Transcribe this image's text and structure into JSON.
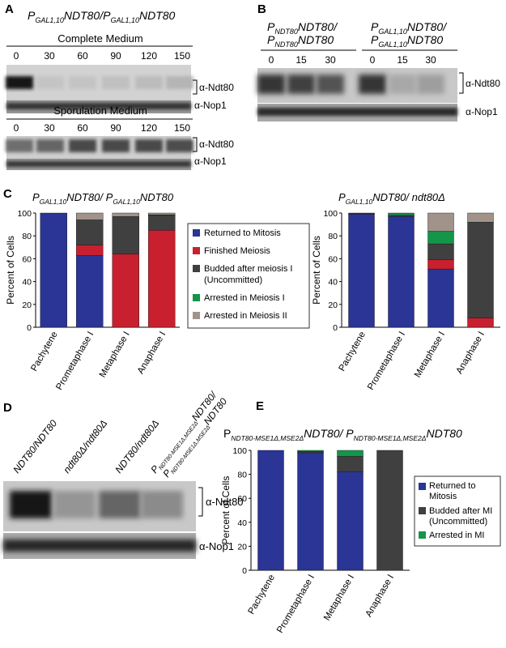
{
  "panels": {
    "A": {
      "letter": "A",
      "genotype": {
        "p1": "P",
        "s1": "GAL1,10",
        "m": "NDT80/",
        "p2": "P",
        "s2": "GAL1,10",
        "e": "NDT80"
      },
      "complete": {
        "title": "Complete Medium",
        "lanes": [
          "0",
          "30",
          "60",
          "90",
          "120",
          "150"
        ]
      },
      "sporulation": {
        "title": "Sporulation Medium",
        "lanes": [
          "0",
          "30",
          "60",
          "90",
          "120",
          "150"
        ]
      },
      "labels": {
        "ndt80": "α-Ndt80",
        "nop1": "α-Nop1"
      },
      "band_levels_complete": [
        1.0,
        0.1,
        0.1,
        0.12,
        0.14,
        0.18
      ],
      "band_levels_sporulation": [
        0.55,
        0.6,
        0.75,
        0.75,
        0.75,
        0.72
      ]
    },
    "B": {
      "letter": "B",
      "left_genotype": {
        "p1": "P",
        "s1": "NDT80",
        "m": "NDT80/",
        "p2": "P",
        "s2": "NDT80",
        "e": "NDT80"
      },
      "right_genotype": {
        "p1": "P",
        "s1": "GAL1,10",
        "m": "NDT80/",
        "p2": "P",
        "s2": "GAL1,10",
        "e": "NDT80"
      },
      "left_lanes": [
        "0",
        "15",
        "30"
      ],
      "right_lanes": [
        "0",
        "15",
        "30"
      ],
      "labels": {
        "ndt80": "α-Ndt80",
        "nop1": "α-Nop1"
      },
      "band_levels": [
        0.85,
        0.8,
        0.7,
        0.85,
        0.25,
        0.3
      ]
    },
    "C": {
      "letter": "C",
      "left_title": {
        "p": "P",
        "s": "GAL1,10",
        "m": "NDT80/ ",
        "p2": "P",
        "s2": "GAL1,10",
        "e": "NDT80"
      },
      "right_title": {
        "p": "P",
        "s": "GAL1,10",
        "e": "NDT80/ ndt80Δ"
      },
      "legend": [
        "Returned to Mitosis",
        "Finished Meiosis",
        "Budded after meiosis I",
        "(Uncommitted)",
        "Arrested in Meiosis I",
        "Arrested in Meiosis II"
      ]
    },
    "D": {
      "letter": "D",
      "lanes": [
        "NDT80/NDT80",
        "ndt80Δ/ndt80Δ",
        "NDT80/ndt80Δ"
      ],
      "lane4": {
        "p1": "P",
        "s1": "NDT80-MSE1Δ,MSE2Δ",
        "e1": "NDT80/",
        "p2": "P",
        "s2": "NDT80-MSE1Δ,MSE2Δ",
        "e2": "NDT80"
      },
      "labels": {
        "ndt80": "α-Ndt80",
        "nop1": "α-Nop1"
      },
      "band_levels": [
        1.0,
        0.35,
        0.6,
        0.4
      ]
    },
    "E": {
      "letter": "E",
      "title": {
        "p1": "P",
        "s1": "NDT80-MSE1Δ,MSE2Δ",
        "m": "NDT80/ P",
        "s2": "NDT80-MSE1Δ,MSE2Δ",
        "e": "NDT80"
      },
      "legend": [
        "Returned to",
        "Mitosis",
        "Budded after MI",
        "(Uncommitted)",
        "Arrested in MI"
      ]
    }
  },
  "colors": {
    "mitosis": "#2a3596",
    "finished_meiosis": "#c8202f",
    "budded": "#404040",
    "arrest_mi": "#14954a",
    "arrest_mii": "#a1938a"
  },
  "chart_data": [
    {
      "type": "bar",
      "stacked": true,
      "ylabel": "Percent of Cells",
      "ylim": [
        0,
        100
      ],
      "yticks": [
        "0",
        "20",
        "40",
        "60",
        "80",
        "100"
      ],
      "categories": [
        "Pachytene",
        "Prometaphase I",
        "Metaphase I",
        "Anaphase I"
      ],
      "series": [
        {
          "name": "Returned to Mitosis",
          "color": "#2a3596",
          "values": [
            100,
            63,
            0,
            0
          ]
        },
        {
          "name": "Finished Meiosis",
          "color": "#c8202f",
          "values": [
            0,
            9,
            64,
            85
          ]
        },
        {
          "name": "Budded after meiosis I (Uncommitted)",
          "color": "#404040",
          "values": [
            0,
            22,
            33,
            13
          ]
        },
        {
          "name": "Arrested in Meiosis I",
          "color": "#14954a",
          "values": [
            0,
            0,
            0,
            0.5
          ]
        },
        {
          "name": "Arrested in Meiosis II",
          "color": "#a1938a",
          "values": [
            0,
            6,
            3,
            1.5
          ]
        }
      ]
    },
    {
      "type": "bar",
      "stacked": true,
      "ylabel": "Percent of Cells",
      "ylim": [
        0,
        100
      ],
      "yticks": [
        "0",
        "20",
        "40",
        "60",
        "80",
        "100"
      ],
      "categories": [
        "Pachytene",
        "Prometaphase I",
        "Metaphase I",
        "Anaphase I"
      ],
      "series": [
        {
          "name": "Returned to Mitosis",
          "color": "#2a3596",
          "values": [
            99,
            97,
            51,
            0
          ]
        },
        {
          "name": "Finished Meiosis",
          "color": "#c8202f",
          "values": [
            0,
            0,
            8,
            8
          ]
        },
        {
          "name": "Budded after meiosis I (Uncommitted)",
          "color": "#404040",
          "values": [
            0.5,
            1,
            14,
            84
          ]
        },
        {
          "name": "Arrested in Meiosis I",
          "color": "#14954a",
          "values": [
            0.5,
            2,
            11,
            0
          ]
        },
        {
          "name": "Arrested in Meiosis II",
          "color": "#a1938a",
          "values": [
            0,
            0,
            16,
            8
          ]
        }
      ]
    },
    {
      "type": "bar",
      "stacked": true,
      "ylabel": "Percent of Cells",
      "ylim": [
        0,
        100
      ],
      "yticks": [
        "0",
        "20",
        "40",
        "60",
        "80",
        "100"
      ],
      "categories": [
        "Pachytene",
        "Prometaphase I",
        "Metaphase I",
        "Anaphase I"
      ],
      "series": [
        {
          "name": "Returned to Mitosis",
          "color": "#2a3596",
          "values": [
            100,
            98,
            82,
            0
          ]
        },
        {
          "name": "Budded after MI (Uncommitted)",
          "color": "#404040",
          "values": [
            0,
            1,
            13,
            100
          ]
        },
        {
          "name": "Arrested in MI",
          "color": "#14954a",
          "values": [
            0,
            1,
            5,
            0
          ]
        }
      ]
    }
  ]
}
